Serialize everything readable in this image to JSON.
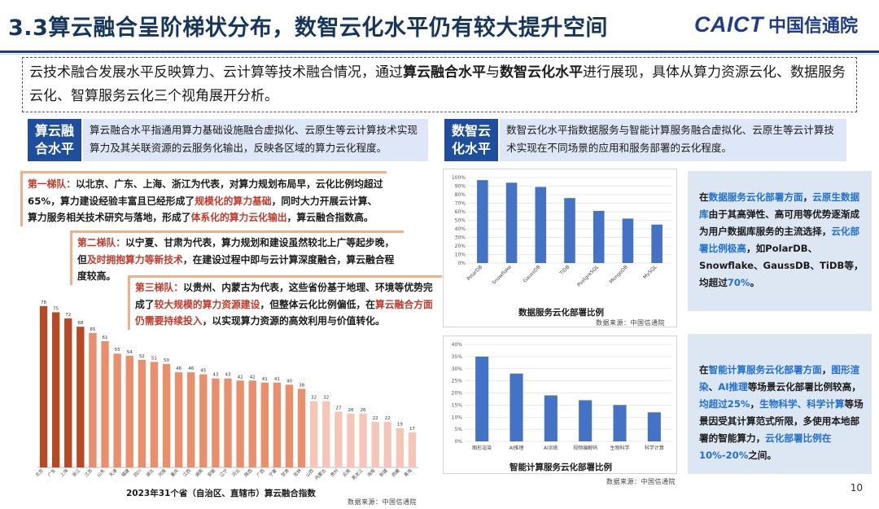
{
  "header": {
    "title": "3.3算云融合呈阶梯状分布，数智云化水平仍有较大提升空间",
    "logo_en": "CAICT",
    "logo_cn": "中国信通院"
  },
  "intro": {
    "p1": "云技术融合发展水平反映算力、云计算等技术融合情况，通过",
    "b1": "算云融合水平",
    "p2": "与",
    "b2": "数智云化水平",
    "p3": "进行展现，具体从算力资源云化、数据服务云化、智算服务云化三个视角展开分析。"
  },
  "left_tag": {
    "label1": "算云融",
    "label2": "合水平",
    "desc": "算云融合水平指通用算力基础设施融合虚拟化、云原生等云计算技术实现算力及其关联资源的云服务化输出，反映各区域的算力云化程度。"
  },
  "right_tag": {
    "label1": "数智云",
    "label2": "化水平",
    "desc": "数智云化水平指数据服务与智能计算服务融合虚拟化、云原生等云计算技术实现在不同场景的应用和服务部署的云化程度。"
  },
  "tiers": {
    "t1": {
      "head": "第一梯队：",
      "a": "以北京、广东、上海、浙江为代表，对算力规划布局早，云化比例均超过65%，算力建设经验丰富且已经形成了",
      "r1": "规模化的算力基础",
      "b": "，同时大力开展云计算、算力服务相关技术研究与落地，形成了",
      "r2": "体系化的算力云化输出",
      "c": "，算云融合指数高。"
    },
    "t2": {
      "head": "第二梯队：",
      "a": "以宁夏、甘肃为代表，算力规划和建设虽然较北上广等起步晚，但",
      "r1": "及时拥抱算力等新技术",
      "b": "，在建设过程中即与云计算深度融合，算云融合程度较高。"
    },
    "t3": {
      "head": "第三梯队：",
      "a": "以贵州、内蒙古为代表，这些省份基于地理、环境等优势完成了",
      "r1": "较大规模的算力资源建设",
      "b": "，但整体云化比例偏低，在",
      "r2": "算云融合方面仍需要持续投入",
      "c": "，以实现算力资源的高效利用与价值转化。"
    }
  },
  "left_chart": {
    "title": "2023年31个省（自治区、直辖市）算云融合指数",
    "source": "数据来源：中国信通院"
  },
  "top_chart": {
    "title": "数据服务云化部署比例",
    "source": "数据来源：中国信通院"
  },
  "bottom_chart": {
    "title": "智能计算服务云化部署比例",
    "source": "数据来源：中国信通院"
  },
  "note1": {
    "a": "在",
    "b1": "数据服务云化部署方面",
    "c": "，",
    "b2": "云原生数据库",
    "d": "由于其高弹性、高可用等优势逐渐成为用户数据库服务的主流选择，",
    "b3": "云化部署比例极高",
    "e": "，如PolarDB、Snowflake、GaussDB、TiDB等，均超过",
    "b4": "70%",
    "f": "。"
  },
  "note2": {
    "a": "在",
    "b1": "智能计算服务云化部署方面",
    "c": "，",
    "b2": "图形渲染",
    "d": "、",
    "b3": "AI推理",
    "e": "等场景云化部署比例较高，",
    "b4": "均超过25%",
    "f": "，",
    "b5": "生物科学、科学计算",
    "g": "等场景因受其计算范式所限，多使用本地部署的智能算力，",
    "b6": "云化部署比例在10%-20%",
    "h": "之间。"
  },
  "page_number": "10",
  "chart_data": [
    {
      "type": "bar",
      "title": "2023年31个省（自治区、直辖市）算云融合指数",
      "categories": [
        "北京",
        "广东",
        "上海",
        "浙江",
        "江苏",
        "山东",
        "天津",
        "福建",
        "四川",
        "湖北",
        "河南",
        "重庆",
        "江西",
        "湖南",
        "安徽",
        "辽宁",
        "河北",
        "陕西",
        "广西",
        "宁夏",
        "甘肃",
        "吉林",
        "山西",
        "内蒙古",
        "贵州",
        "云南",
        "黑龙江",
        "海南",
        "新疆",
        "西藏",
        "青海"
      ],
      "values": [
        78,
        75,
        72,
        68,
        65,
        61,
        55,
        54,
        52,
        51,
        50,
        46,
        46,
        45,
        43,
        43,
        42,
        42,
        41,
        41,
        40,
        38,
        32,
        32,
        27,
        26,
        26,
        22,
        22,
        19,
        17
      ],
      "ylim": [
        0,
        85
      ],
      "colors": {
        "high": "#b64a25",
        "mid": "#e98f6c",
        "low": "#f5c6b8"
      }
    },
    {
      "type": "bar",
      "title": "数据服务云化部署比例",
      "categories": [
        "PolarDB",
        "Snowflake",
        "GaussDB",
        "TiDB",
        "PostgreSQL",
        "MongoDB",
        "MySQL"
      ],
      "values": [
        97,
        94,
        89,
        76,
        61,
        52,
        45
      ],
      "y_ticks": [
        "0%",
        "10%",
        "20%",
        "30%",
        "40%",
        "50%",
        "60%",
        "70%",
        "80%",
        "90%",
        "100%"
      ],
      "ylim": [
        0,
        100
      ],
      "color": "#4472c4"
    },
    {
      "type": "bar",
      "title": "智能计算服务云化部署比例",
      "categories": [
        "图形渲染",
        "AI推理",
        "AI训练",
        "视频编解码",
        "生物科学",
        "科学计算"
      ],
      "values": [
        35,
        28,
        19,
        17,
        15,
        12
      ],
      "y_ticks": [
        "0%",
        "5%",
        "10%",
        "15%",
        "20%",
        "25%",
        "30%",
        "35%",
        "40%"
      ],
      "ylim": [
        0,
        40
      ],
      "color": "#4472c4"
    }
  ]
}
